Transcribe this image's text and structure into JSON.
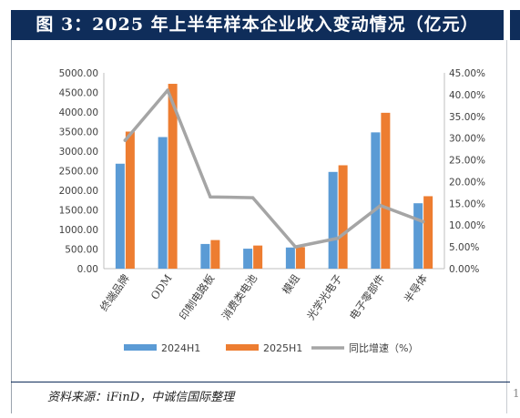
{
  "header": {
    "title": "图 3：2025 年上半年样本企业收入变动情况（亿元）"
  },
  "footer": {
    "source": "资料来源：iFinD，中诚信国际整理",
    "fragment": "1"
  },
  "chart_data": {
    "type": "bar",
    "title": "图 3：2025 年上半年样本企业收入变动情况（亿元）",
    "categories": [
      "终端品牌",
      "ODM",
      "印制电路板",
      "消费类电池",
      "模组",
      "光学光电子",
      "电子零部件",
      "半导体"
    ],
    "series": [
      {
        "name": "2024H1",
        "type": "bar",
        "axis": "left",
        "color": "#5b9bd5",
        "values": [
          2680,
          3360,
          630,
          510,
          540,
          2470,
          3480,
          1670
        ]
      },
      {
        "name": "2025H1",
        "type": "bar",
        "axis": "left",
        "color": "#ed7d31",
        "values": [
          3500,
          4720,
          730,
          590,
          550,
          2640,
          3980,
          1850
        ]
      },
      {
        "name": "同比增速（%）",
        "type": "line",
        "axis": "right",
        "color": "#a5a5a5",
        "values": [
          29.5,
          41.0,
          16.5,
          16.3,
          5.0,
          7.0,
          14.5,
          10.8
        ]
      }
    ],
    "y_left": {
      "min": 0,
      "max": 5000,
      "step": 500,
      "ticks": [
        "0.00",
        "500.00",
        "1000.00",
        "1500.00",
        "2000.00",
        "2500.00",
        "3000.00",
        "3500.00",
        "4000.00",
        "4500.00",
        "5000.00"
      ]
    },
    "y_right": {
      "min": 0,
      "max": 45,
      "step": 5,
      "ticks": [
        "0.00%",
        "5.00%",
        "10.00%",
        "15.00%",
        "20.00%",
        "25.00%",
        "30.00%",
        "35.00%",
        "40.00%",
        "45.00%"
      ]
    },
    "grid": false,
    "legend": "bottom"
  }
}
